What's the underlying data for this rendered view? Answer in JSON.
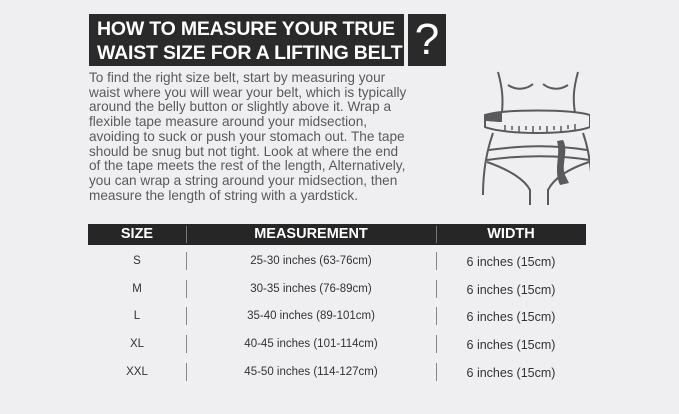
{
  "title": {
    "line1": "HOW TO MEASURE YOUR TRUE",
    "line2": "WAIST SIZE FOR A LIFTING BELT",
    "question_mark": "?"
  },
  "body": "To find the right size belt, start by measuring your\nwaist where you will wear your belt, which is typically\naround the belly button or slightly above it. Wrap a\nflexible tape measure around your midsection,\navoiding to suck or push your stomach out. The tape\nshould be snug but not tight. Look at where the end\nof the tape meets the rest of the length, Alternatively,\nyou can wrap a string around your midsection, then\nmeasure the length of string with a yardstick.",
  "illustration": "waist-tape-measure-icon",
  "table": {
    "headers": [
      "SIZE",
      "MEASUREMENT",
      "WIDTH"
    ],
    "rows": [
      [
        "S",
        "25-30 inches (63-76cm)",
        "6 inches (15cm)"
      ],
      [
        "M",
        "30-35 inches (76-89cm)",
        "6 inches (15cm)"
      ],
      [
        "L",
        "35-40 inches (89-101cm)",
        "6 inches (15cm)"
      ],
      [
        "XL",
        "40-45 inches (101-114cm)",
        "6 inches (15cm)"
      ],
      [
        "XXL",
        "45-50 inches (114-127cm)",
        "6 inches (15cm)"
      ]
    ]
  }
}
